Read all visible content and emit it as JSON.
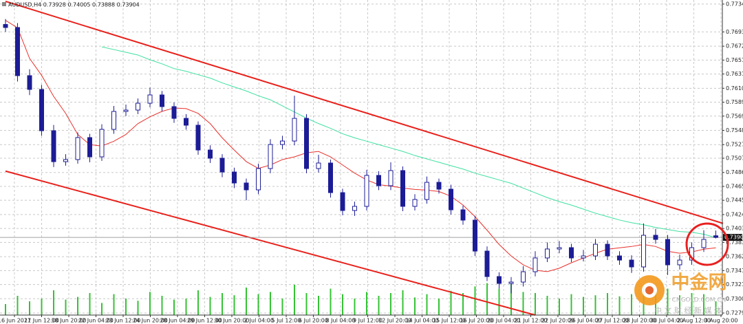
{
  "chart_data": {
    "type": "candlestick",
    "title": "AUDUSD,H4 0.73928 0.74005 0.73888 0.73904",
    "ylim": [
      0.7276,
      0.774
    ],
    "yticks": [
      {
        "value": 0.7734,
        "label": "0.77340"
      },
      {
        "value": 0.7693,
        "label": "0.76930"
      },
      {
        "value": 0.7672,
        "label": "0.76720"
      },
      0.76515,
      {
        "value": 0.7631,
        "label": "0.76310"
      },
      {
        "value": 0.761,
        "label": "0.76100"
      },
      0.75895,
      {
        "value": 0.7569,
        "label": "0.75690"
      },
      {
        "value": 0.7548,
        "label": "0.75480"
      },
      {
        "value": 0.7527,
        "label": "0.75270"
      },
      {
        "value": 0.7507,
        "label": "0.75070"
      },
      {
        "value": 0.7486,
        "label": "0.74860"
      },
      0.74655,
      {
        "value": 0.7445,
        "label": "0.74450"
      },
      {
        "value": 0.7424,
        "label": "0.74240"
      },
      0.74035,
      {
        "value": 0.7383,
        "label": "0.73830"
      },
      {
        "value": 0.7362,
        "label": "0.73620"
      },
      0.73415,
      {
        "value": 0.7321,
        "label": "0.73210"
      },
      {
        "value": 0.73,
        "label": "0.73000"
      },
      {
        "value": 0.7279,
        "label": "0.72790"
      }
    ],
    "x_labels": [
      "16 Jun 2021",
      "17 Jun 12:00",
      "18 Jun 20:00",
      "22 Jun 04:00",
      "23 Jun 12:00",
      "24 Jun 20:00",
      "28 Jun 04:00",
      "29 Jun 12:00",
      "30 Jun 20:00",
      "2 Jul 04:00",
      "5 Jul 12:00",
      "6 Jul 20:00",
      "8 Jul 04:00",
      "9 Jul 12:00",
      "12 Jul 20:00",
      "14 Jul 04:00",
      "15 Jul 12:00",
      "16 Jul 20:00",
      "20 Jul 04:00",
      "21 Jul 12:00",
      "22 Jul 20:00",
      "26 Jul 04:00",
      "27 Jul 12:00",
      "28 Jul 20:00",
      "30 Jul 04:00",
      "2 Aug 12:00",
      "3 Aug 20:00"
    ],
    "grid": true,
    "up_color": "#ffffff",
    "down_color": "#1c1c96",
    "open": [
      0.7704,
      0.76995,
      0.76286,
      0.76083,
      0.75475,
      0.75019,
      0.7505,
      0.75374,
      0.7509,
      0.75495,
      0.75759,
      0.75779,
      0.7588,
      0.76002,
      0.7583,
      0.75657,
      0.75556,
      0.75191,
      0.7507,
      0.74867,
      0.74705,
      0.74604,
      0.74918,
      0.75272,
      0.75323,
      0.75657,
      0.74918,
      0.74999,
      0.74563,
      0.743,
      0.74361,
      0.74817,
      0.74665,
      0.74888,
      0.74361,
      0.74462,
      0.74715,
      0.74614,
      0.7431,
      0.74158,
      0.73702,
      0.73327,
      0.73226,
      0.73246,
      0.73398,
      0.73601,
      0.73733,
      0.73753,
      0.73601,
      0.73631,
      0.73803,
      0.73631,
      0.7357,
      0.73469,
      0.73935,
      0.73874,
      0.735,
      0.7357,
      0.73753,
      0.73928
    ],
    "high": [
      0.7712,
      0.7706,
      0.7638,
      0.7615,
      0.7556,
      0.7513,
      0.7545,
      0.7543,
      0.7557,
      0.7584,
      0.7586,
      0.7595,
      0.7611,
      0.7606,
      0.7589,
      0.7572,
      0.7561,
      0.7526,
      0.7513,
      0.7493,
      0.7477,
      0.7499,
      0.7535,
      0.754,
      0.7599,
      0.7572,
      0.7512,
      0.7505,
      0.7462,
      0.7443,
      0.749,
      0.7488,
      0.7501,
      0.7495,
      0.7454,
      0.748,
      0.7477,
      0.7468,
      0.7437,
      0.7422,
      0.7377,
      0.7339,
      0.7332,
      0.7348,
      0.737,
      0.7383,
      0.7385,
      0.7381,
      0.7372,
      0.7388,
      0.7386,
      0.737,
      0.7364,
      0.7411,
      0.7403,
      0.7394,
      0.7365,
      0.7383,
      0.7401,
      0.74005
    ],
    "low": [
      0.7693,
      0.762,
      0.76,
      0.754,
      0.7494,
      0.7496,
      0.7499,
      0.7501,
      0.7503,
      0.7543,
      0.7569,
      0.7572,
      0.7582,
      0.7576,
      0.7559,
      0.7549,
      0.7512,
      0.75,
      0.7479,
      0.7463,
      0.7445,
      0.7454,
      0.7485,
      0.752,
      0.7526,
      0.7485,
      0.7486,
      0.7449,
      0.7423,
      0.7422,
      0.743,
      0.746,
      0.746,
      0.7429,
      0.743,
      0.744,
      0.7455,
      0.7424,
      0.7409,
      0.7363,
      0.7326,
      0.7315,
      0.7308,
      0.7318,
      0.7333,
      0.7354,
      0.7367,
      0.7354,
      0.7355,
      0.7357,
      0.7357,
      0.735,
      0.7338,
      0.734,
      0.7381,
      0.7335,
      0.7343,
      0.735,
      0.7369,
      0.73888
    ],
    "close": [
      0.76995,
      0.76286,
      0.76083,
      0.75475,
      0.75019,
      0.7505,
      0.75374,
      0.7509,
      0.75495,
      0.75759,
      0.75779,
      0.7588,
      0.76002,
      0.7583,
      0.75657,
      0.75556,
      0.75191,
      0.7507,
      0.74867,
      0.74705,
      0.74604,
      0.74918,
      0.75272,
      0.75323,
      0.75657,
      0.74918,
      0.74999,
      0.74563,
      0.743,
      0.74361,
      0.74817,
      0.74665,
      0.74888,
      0.74361,
      0.74462,
      0.74715,
      0.74614,
      0.7431,
      0.74158,
      0.73702,
      0.73327,
      0.73226,
      0.73246,
      0.73398,
      0.73601,
      0.73733,
      0.73753,
      0.73601,
      0.73631,
      0.73803,
      0.73631,
      0.7357,
      0.73469,
      0.73935,
      0.73874,
      0.735,
      0.7357,
      0.73753,
      0.73874,
      0.73904
    ],
    "series": [
      {
        "color": "#e8302a",
        "values": [
          0.771,
          0.7699,
          0.7654,
          0.7629,
          0.7598,
          0.7573,
          0.7542,
          0.7527,
          0.7525,
          0.7532,
          0.7542,
          0.7558,
          0.7568,
          0.7576,
          0.7581,
          0.758,
          0.7573,
          0.7558,
          0.7537,
          0.7519,
          0.7502,
          0.7492,
          0.7497,
          0.7505,
          0.7509,
          0.7515,
          0.7517,
          0.7509,
          0.7497,
          0.7485,
          0.7475,
          0.7468,
          0.7466,
          0.7463,
          0.7461,
          0.746,
          0.7458,
          0.7451,
          0.7438,
          0.7421,
          0.7401,
          0.738,
          0.7363,
          0.735,
          0.7342,
          0.734,
          0.7345,
          0.7353,
          0.736,
          0.7367,
          0.7373,
          0.7375,
          0.7377,
          0.738,
          0.7377,
          0.737,
          0.7367,
          0.7369,
          0.7373,
          0.7375
        ]
      },
      {
        "color": "#3ee0a0",
        "values": [
          null,
          null,
          null,
          null,
          null,
          null,
          null,
          null,
          0.7671,
          0.7667,
          0.7663,
          0.7659,
          0.7652,
          0.7646,
          0.7639,
          0.7635,
          0.763,
          0.7625,
          0.7618,
          0.7612,
          0.7606,
          0.7599,
          0.7593,
          0.7584,
          0.7575,
          0.7566,
          0.7558,
          0.7551,
          0.7543,
          0.7537,
          0.7532,
          0.7527,
          0.7522,
          0.7517,
          0.7511,
          0.7506,
          0.7501,
          0.7496,
          0.7491,
          0.7485,
          0.748,
          0.7475,
          0.747,
          0.7463,
          0.7456,
          0.7449,
          0.7443,
          0.7438,
          0.7432,
          0.7426,
          0.7421,
          0.7416,
          0.7412,
          0.7409,
          0.7405,
          0.7402,
          0.7399,
          0.7398,
          0.7395,
          0.739
        ]
      }
    ],
    "trendlines": [
      {
        "color": "#e8201a",
        "x": [
          0,
          59.6
        ],
        "y": [
          0.7738,
          0.7411
        ]
      },
      {
        "color": "#e8201a",
        "x": [
          0,
          44
        ],
        "y": [
          0.7488,
          0.7276
        ]
      }
    ],
    "volume_color": "#34c234",
    "volume_lim": [
      0,
      100
    ],
    "volumes": [
      20,
      35,
      25,
      30,
      45,
      28,
      33,
      40,
      22,
      38,
      30,
      26,
      42,
      35,
      28,
      30,
      45,
      33,
      40,
      36,
      50,
      38,
      42,
      30,
      55,
      40,
      35,
      48,
      38,
      30,
      42,
      35,
      40,
      45,
      32,
      38,
      30,
      44,
      40,
      52,
      58,
      48,
      60,
      42,
      40,
      35,
      30,
      38,
      33,
      36,
      40,
      34,
      38,
      50,
      42,
      48,
      36,
      40,
      38,
      25
    ]
  },
  "watermark": {
    "name": "中金网",
    "site": "CNGOLD.COM.CN",
    "slogan": "中 文 财 经 新 媒 体"
  }
}
